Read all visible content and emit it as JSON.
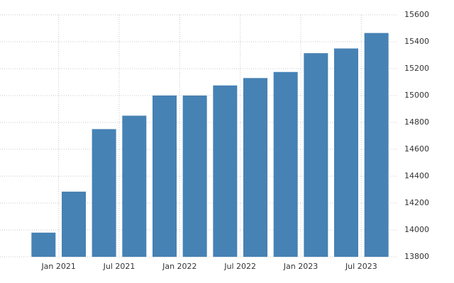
{
  "chart_data": {
    "type": "bar",
    "categories": [
      null,
      "Jan 2021",
      null,
      "Jul 2021",
      null,
      "Jan 2022",
      null,
      "Jul 2022",
      null,
      "Jan 2023",
      null,
      "Jul 2023"
    ],
    "values": [
      13980,
      14285,
      14750,
      14850,
      15000,
      15000,
      15075,
      15130,
      15175,
      15315,
      15350,
      15465
    ],
    "color": "#4682b4",
    "ylim": [
      13800,
      15600
    ],
    "yticks": [
      13800,
      14000,
      14200,
      14400,
      14600,
      14800,
      15000,
      15200,
      15400,
      15600
    ],
    "grid": true
  }
}
